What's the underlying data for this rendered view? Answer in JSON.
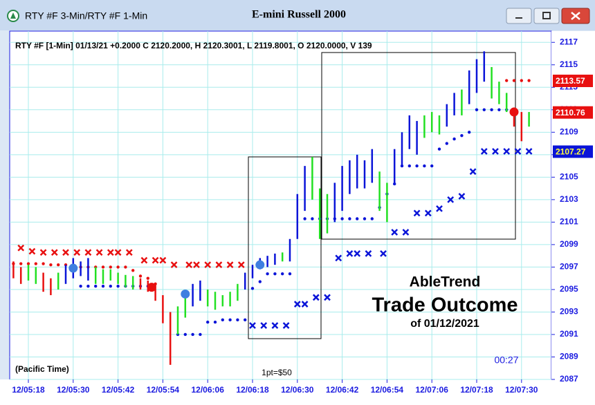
{
  "window": {
    "title": "RTY #F 3-Min/RTY #F 1-Min"
  },
  "chart_data": {
    "type": "hilo",
    "title": "E-mini Russell 2000",
    "subtitle": "RTY #F [1-Min] 01/13/21  +0.2000 C 2120.2000, H 2120.3001, L 2119.8001, O 2120.0000, V 139",
    "xlim": [
      "12/05:13",
      "12/07:38"
    ],
    "xticks": [
      "12/05:18",
      "12/05:30",
      "12/05:42",
      "12/05:54",
      "12/06:06",
      "12/06:18",
      "12/06:30",
      "12/06:42",
      "12/06:54",
      "12/07:06",
      "12/07:18",
      "12/07:30"
    ],
    "ylim": [
      2087,
      2118
    ],
    "yticks": [
      2087,
      2089,
      2091,
      2093,
      2095,
      2097,
      2099,
      2101,
      2103,
      2105,
      2107,
      2109,
      2111,
      2113,
      2115,
      2117
    ],
    "grid": true,
    "colors": {
      "up": "#0a14d8",
      "down": "#e81010",
      "flat": "#22e022",
      "resistance": "#e81010",
      "support": "#0a14d8",
      "signal_up": "#3f7fe0",
      "signal_down": "#e81010"
    },
    "bars": {
      "x": [
        "12/05:14",
        "12/05:16",
        "12/05:18",
        "12/05:20",
        "12/05:22",
        "12/05:24",
        "12/05:26",
        "12/05:28",
        "12/05:30",
        "12/05:32",
        "12/05:34",
        "12/05:36",
        "12/05:38",
        "12/05:40",
        "12/05:42",
        "12/05:44",
        "12/05:46",
        "12/05:48",
        "12/05:50",
        "12/05:52",
        "12/05:54",
        "12/05:56",
        "12/05:58",
        "12/06:00",
        "12/06:02",
        "12/06:04",
        "12/06:06",
        "12/06:08",
        "12/06:10",
        "12/06:12",
        "12/06:14",
        "12/06:16",
        "12/06:18",
        "12/06:20",
        "12/06:22",
        "12/06:24",
        "12/06:26",
        "12/06:28",
        "12/06:30",
        "12/06:32",
        "12/06:34",
        "12/06:36",
        "12/06:38",
        "12/06:40",
        "12/06:42",
        "12/06:44",
        "12/06:46",
        "12/06:48",
        "12/06:50",
        "12/06:52",
        "12/06:54",
        "12/06:56",
        "12/06:58",
        "12/07:00",
        "12/07:02",
        "12/07:04",
        "12/07:06",
        "12/07:08",
        "12/07:10",
        "12/07:12",
        "12/07:14",
        "12/07:16",
        "12/07:18",
        "12/07:20",
        "12/07:22",
        "12/07:24",
        "12/07:26",
        "12/07:28",
        "12/07:30",
        "12/07:32"
      ],
      "high": [
        2097.5,
        2097,
        2097.2,
        2097,
        2096.5,
        2096,
        2096.5,
        2097.2,
        2097.8,
        2097.5,
        2097.8,
        2097,
        2096.8,
        2096.8,
        2096.5,
        2096.3,
        2096.2,
        2096,
        2095.8,
        2095.5,
        2094.5,
        2093,
        2093.5,
        2094.5,
        2095.5,
        2095.8,
        2095,
        2094.8,
        2094.5,
        2094.8,
        2095.5,
        2096.5,
        2097.2,
        2097.8,
        2098,
        2098.2,
        2098.3,
        2099.5,
        2103.5,
        2106,
        2106.8,
        2104,
        2103.5,
        2104.5,
        2106,
        2106.5,
        2107,
        2106.5,
        2107.5,
        2105.5,
        2104.5,
        2107.5,
        2109,
        2110.5,
        2110,
        2110.5,
        2110.8,
        2110.5,
        2111.5,
        2112.5,
        2112.8,
        2114.5,
        2115.5,
        2116.2,
        2114.8,
        2113.5,
        2112.5,
        2111.2,
        2110.8,
        2110.8
      ],
      "low": [
        2096,
        2095.5,
        2095.8,
        2095.5,
        2094.8,
        2094.5,
        2095,
        2095.5,
        2096,
        2096.2,
        2095.8,
        2095.5,
        2095.5,
        2095.8,
        2095.5,
        2095.2,
        2095,
        2095,
        2094.8,
        2094,
        2092,
        2088.3,
        2091,
        2092.5,
        2093.5,
        2094,
        2093.5,
        2093.2,
        2093.5,
        2093.5,
        2094,
        2095,
        2096,
        2096.8,
        2097,
        2097.2,
        2097.5,
        2097.5,
        2099.5,
        2102,
        2103,
        2099.5,
        2100,
        2101,
        2102,
        2103.5,
        2104,
        2104,
        2104.5,
        2102,
        2101,
        2104.5,
        2106,
        2107.5,
        2107,
        2108.5,
        2109,
        2108.8,
        2109.5,
        2110.5,
        2110.5,
        2111.5,
        2112.5,
        2113.5,
        2112,
        2111.5,
        2110.8,
        2109.5,
        2108.2,
        2109.5
      ],
      "trend": [
        "down",
        "down",
        "flat",
        "flat",
        "down",
        "down",
        "flat",
        "up",
        "up",
        "up",
        "up",
        "flat",
        "flat",
        "flat",
        "flat",
        "flat",
        "flat",
        "down",
        "down",
        "down",
        "down",
        "down",
        "flat",
        "flat",
        "up",
        "up",
        "flat",
        "flat",
        "flat",
        "flat",
        "flat",
        "up",
        "up",
        "up",
        "up",
        "up",
        "flat",
        "up",
        "up",
        "up",
        "flat",
        "flat",
        "flat",
        "up",
        "up",
        "up",
        "up",
        "up",
        "up",
        "flat",
        "flat",
        "up",
        "up",
        "up",
        "up",
        "flat",
        "flat",
        "flat",
        "up",
        "up",
        "flat",
        "up",
        "up",
        "up",
        "flat",
        "flat",
        "flat",
        "down",
        "down",
        "flat"
      ],
      "resistance": [
        2097.3,
        2097.3,
        2097.3,
        2097.3,
        2097.3,
        2097.2,
        2097.2,
        2097.2,
        2097,
        2097,
        2097,
        2097,
        2097,
        2097,
        2097,
        2097,
        2096.7,
        2096.2,
        2096,
        2095.5,
        null,
        null,
        null,
        null,
        null,
        null,
        null,
        null,
        null,
        null,
        null,
        null,
        null,
        null,
        null,
        null,
        null,
        null,
        null,
        null,
        null,
        null,
        null,
        null,
        null,
        null,
        null,
        null,
        null,
        null,
        null,
        null,
        null,
        null,
        null,
        null,
        null,
        null,
        null,
        null,
        null,
        null,
        null,
        null,
        null,
        null,
        2113.6,
        2113.6,
        2113.6,
        2113.6
      ],
      "support": [
        null,
        null,
        null,
        null,
        null,
        null,
        null,
        null,
        null,
        2095.3,
        2095.3,
        2095.3,
        2095.3,
        2095.3,
        2095.3,
        2095.3,
        2095.3,
        2095.3,
        2095.3,
        null,
        null,
        null,
        2091,
        2091,
        2091,
        2091,
        2092.1,
        2092.1,
        2092.3,
        2092.3,
        2092.3,
        2092.3,
        2095.1,
        2095.7,
        2096.4,
        2096.4,
        2096.4,
        2096.4,
        null,
        2101.3,
        2101.3,
        2101.3,
        2101.3,
        2101.3,
        2101.3,
        2101.3,
        2101.3,
        2101.3,
        2101.3,
        2102.3,
        2103.5,
        2104.4,
        2106,
        2106,
        2106,
        2106,
        2106,
        2107.5,
        2108,
        2108.4,
        2108.7,
        2109,
        2111,
        2111,
        2111,
        2111,
        2111,
        2111,
        null,
        null
      ]
    },
    "sell_stops": {
      "x": [
        "12/05:16",
        "12/05:19",
        "12/05:22",
        "12/05:25",
        "12/05:28",
        "12/05:31",
        "12/05:34",
        "12/05:37",
        "12/05:40",
        "12/05:42",
        "12/05:45",
        "12/05:49",
        "12/05:52",
        "12/05:54",
        "12/05:57",
        "12/06:01",
        "12/06:03",
        "12/06:06",
        "12/06:09",
        "12/06:12",
        "12/06:15"
      ],
      "values": [
        2098.7,
        2098.4,
        2098.3,
        2098.3,
        2098.3,
        2098.3,
        2098.3,
        2098.3,
        2098.3,
        2098.3,
        2098.3,
        2097.6,
        2097.6,
        2097.6,
        2097.2,
        2097.2,
        2097.2,
        2097.2,
        2097.2,
        2097.2,
        2097.2
      ],
      "color": "#e81010"
    },
    "buy_stops": {
      "x": [
        "12/06:18",
        "12/06:21",
        "12/06:24",
        "12/06:27",
        "12/06:30",
        "12/06:32",
        "12/06:35",
        "12/06:38",
        "12/06:41",
        "12/06:44",
        "12/06:46",
        "12/06:49",
        "12/06:53",
        "12/06:56",
        "12/06:59",
        "12/07:02",
        "12/07:05",
        "12/07:08",
        "12/07:11",
        "12/07:14",
        "12/07:17",
        "12/07:20",
        "12/07:23",
        "12/07:26",
        "12/07:29",
        "12/07:32"
      ],
      "values": [
        2091.8,
        2091.8,
        2091.8,
        2091.8,
        2093.7,
        2093.7,
        2094.3,
        2094.3,
        2097.8,
        2098.2,
        2098.2,
        2098.2,
        2098.2,
        2100.1,
        2100.1,
        2101.8,
        2101.8,
        2102.2,
        2103,
        2103.3,
        2105.5,
        2107.3,
        2107.3,
        2107.3,
        2107.3,
        2107.3
      ],
      "color": "#0a14d8"
    },
    "signals": {
      "x": [
        "12/05:30",
        "12/05:51",
        "12/06:00",
        "12/06:20",
        "12/07:28"
      ],
      "values": [
        2096.9,
        2095.2,
        2094.6,
        2097.2,
        2110.8
      ],
      "side": [
        "up",
        "down",
        "up",
        "up",
        "down"
      ]
    },
    "price_labels": [
      {
        "value": 2113.57,
        "label": "2113.57",
        "color": "#e81010"
      },
      {
        "value": 2110.76,
        "label": "2110.76",
        "color": "#e81010"
      },
      {
        "value": 2107.27,
        "label": "2107.27",
        "color": "#0a14d8"
      }
    ],
    "annotations": {
      "brand": "AbleTrend",
      "headline": "Trade Outcome",
      "date": "of 01/12/2021",
      "timezone": "(Pacific Time)",
      "point_value": "1pt=$50",
      "countdown": "00:27"
    }
  }
}
